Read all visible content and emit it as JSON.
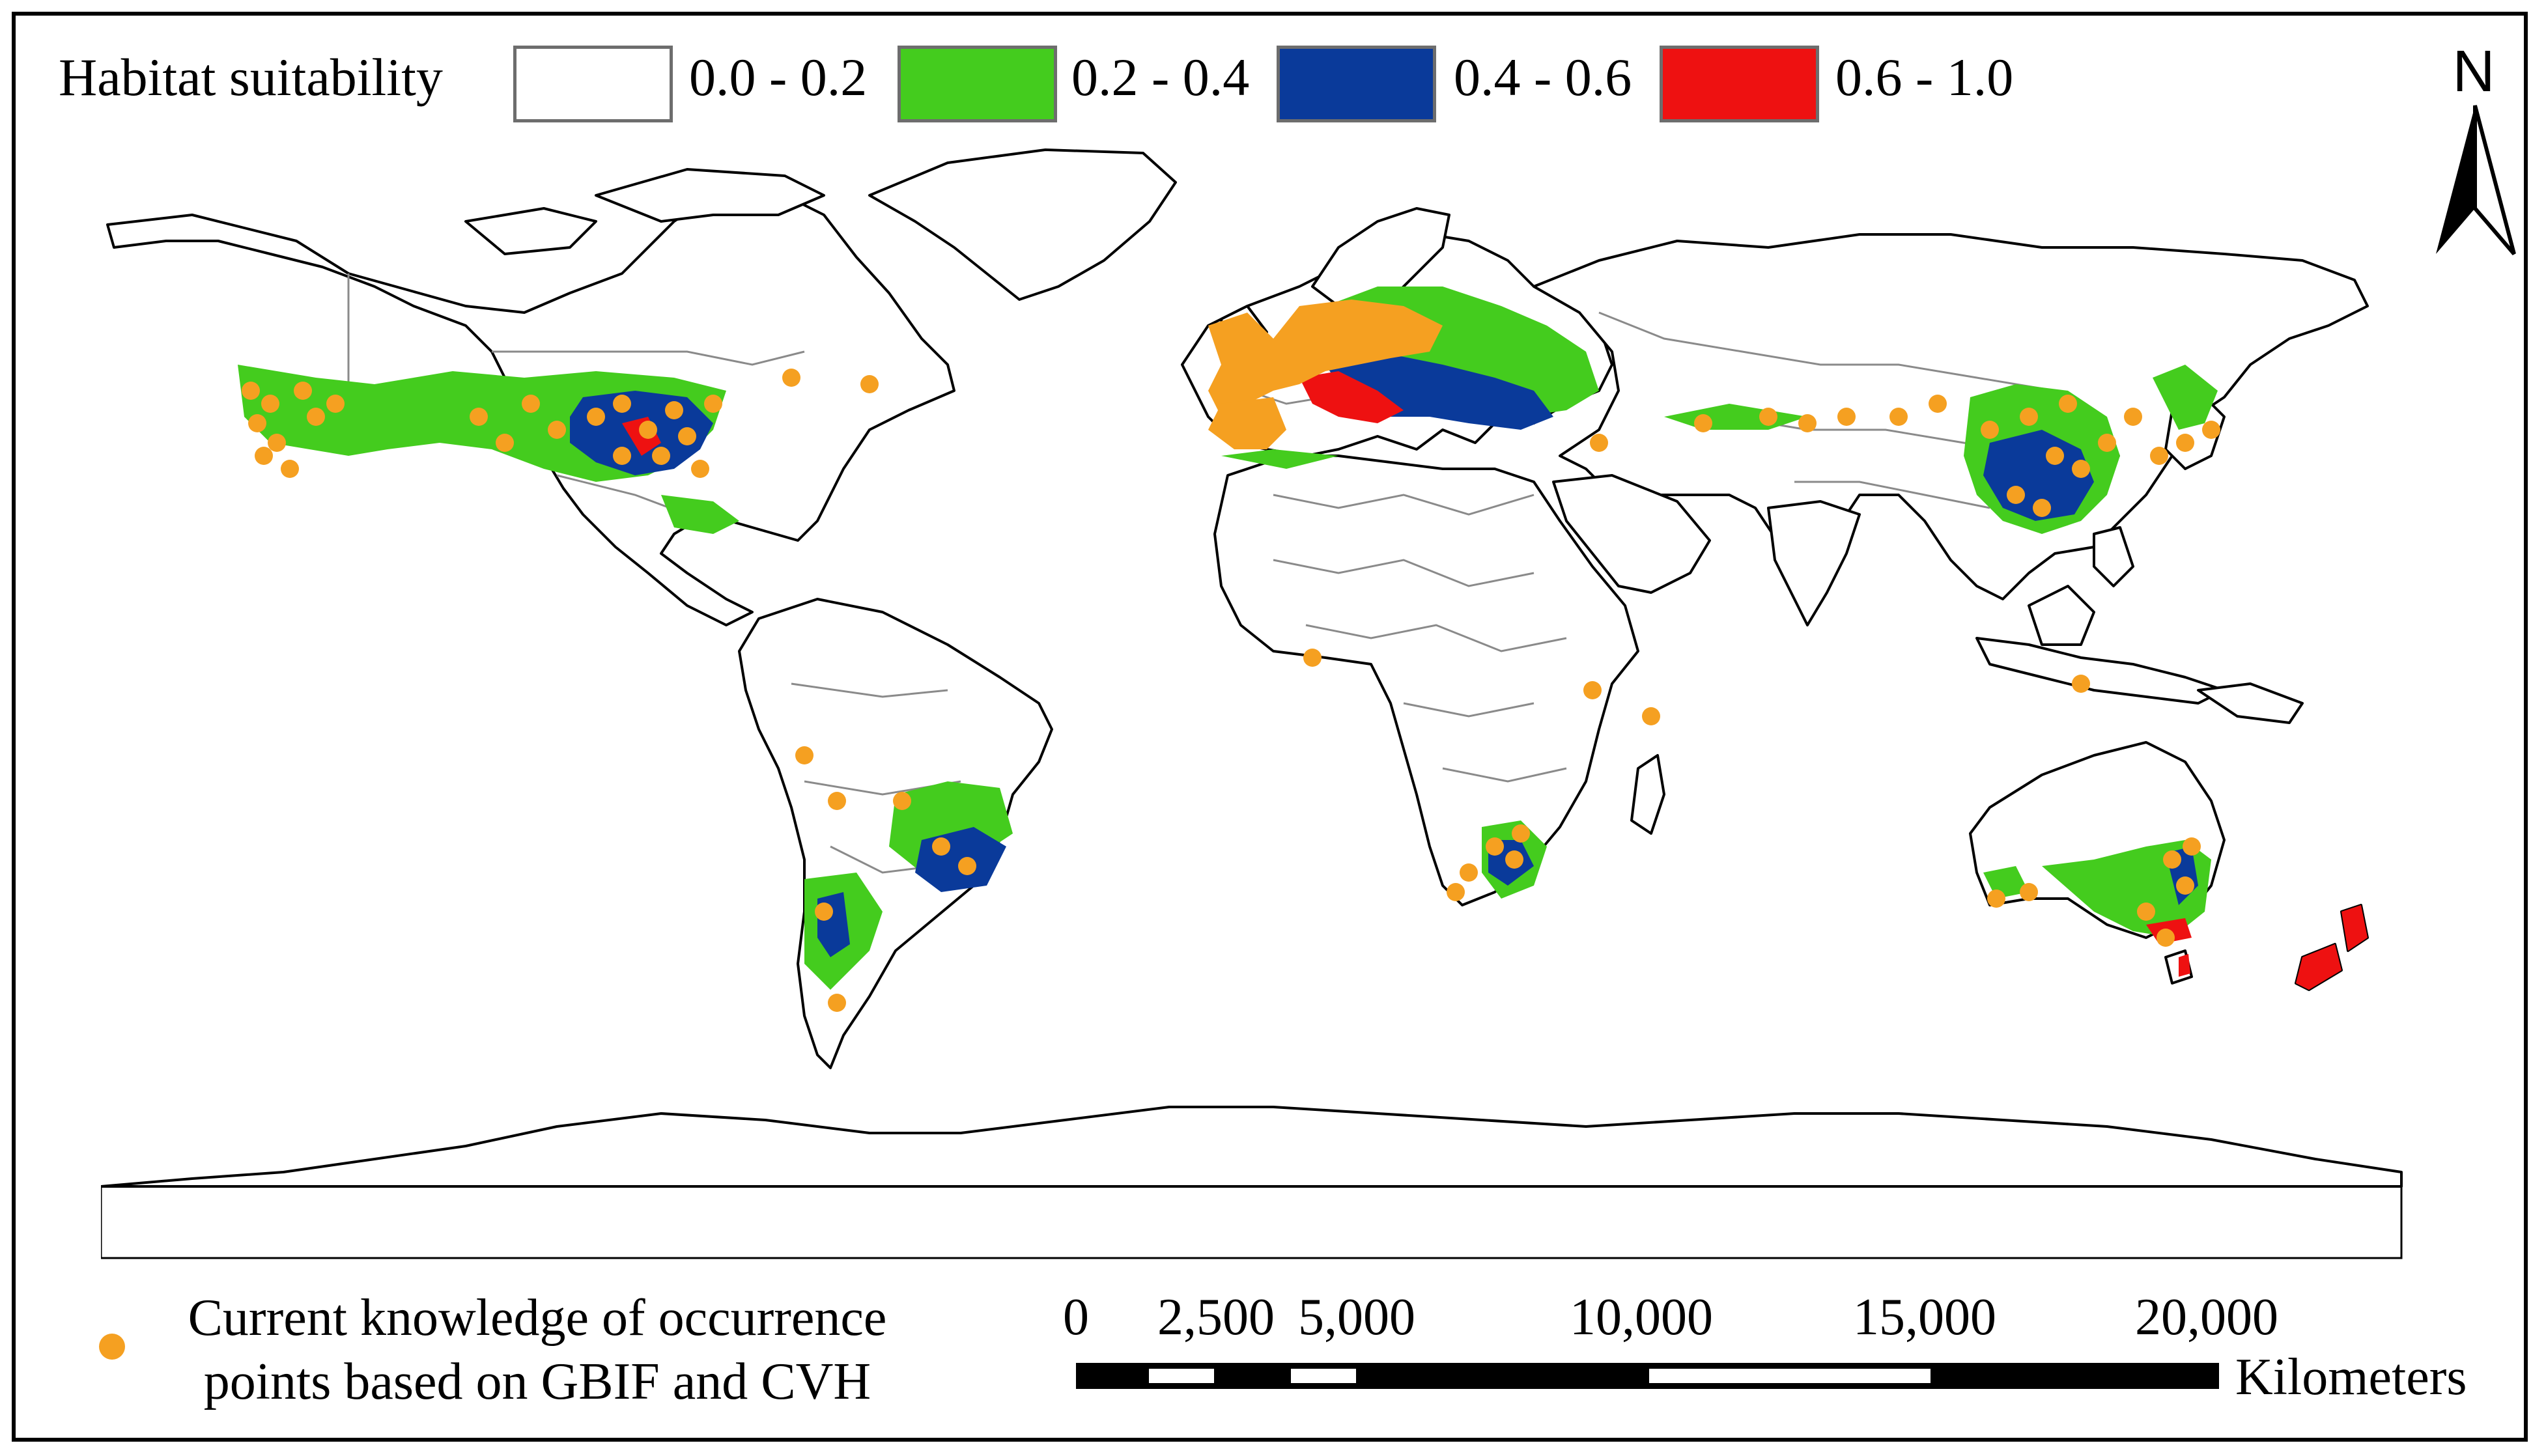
{
  "legend": {
    "title": "Habitat suitability",
    "classes": [
      {
        "label": "0.0 - 0.2",
        "color": "#ffffff"
      },
      {
        "label": "0.2 - 0.4",
        "color": "#44cc1e"
      },
      {
        "label": "0.4 - 0.6",
        "color": "#0a3a9a"
      },
      {
        "label": "0.6 - 1.0",
        "color": "#ee1111"
      }
    ]
  },
  "occurrence": {
    "text_line1": "Current knowledge of occurrence",
    "text_line2": "points based on GBIF and CVH",
    "color": "#f5a021"
  },
  "scale": {
    "ticks": [
      "0",
      "2,500",
      "5,000",
      "10,000",
      "15,000",
      "20,000"
    ],
    "values_km": [
      0,
      2500,
      5000,
      10000,
      15000,
      20000
    ],
    "unit": "Kilometers"
  },
  "north_arrow": {
    "label": "N"
  },
  "colors": {
    "land_outline": "#000000",
    "country_border": "#7a7a7a",
    "background": "#ffffff"
  }
}
